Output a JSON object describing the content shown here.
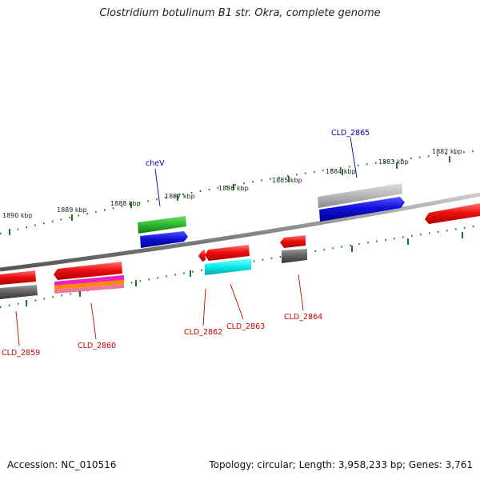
{
  "title": "Clostridium botulinum B1 str. Okra, complete genome",
  "footer": {
    "accession": "Accession: NC_010516",
    "topology": "Topology: circular; Length: 3,958,233 bp; Genes: 3,761"
  },
  "ruler": {
    "ticks": [
      {
        "label": "1890 kbp"
      },
      {
        "label": "1889 kbp"
      },
      {
        "label": "1888 kbp"
      },
      {
        "label": "1887 kbp"
      },
      {
        "label": "1886 kbp"
      },
      {
        "label": "1885 kbp"
      },
      {
        "label": "1884 kbp"
      },
      {
        "label": "1883 kbp"
      },
      {
        "label": "1882 kbp"
      }
    ]
  },
  "colors": {
    "backbone": "#8a8a8a",
    "ruler": "#1f7a1f",
    "red": "#ee1111",
    "blue": "#1010dd",
    "green": "#33bb33",
    "gray": "#666666",
    "lightgray": "#bbbbbb",
    "cyan": "#11eeee",
    "label_red": "#cc0000",
    "label_blue": "#0000aa"
  },
  "gene_labels": [
    {
      "name": "CLD_2865",
      "color": "#0000aa"
    },
    {
      "name": "cheV",
      "color": "#0000aa"
    },
    {
      "name": "CLD_2859",
      "color": "#cc0000"
    },
    {
      "name": "CLD_2860",
      "color": "#cc0000"
    },
    {
      "name": "CLD_2862",
      "color": "#cc0000"
    },
    {
      "name": "CLD_2863",
      "color": "#cc0000"
    },
    {
      "name": "CLD_2864",
      "color": "#cc0000"
    }
  ]
}
